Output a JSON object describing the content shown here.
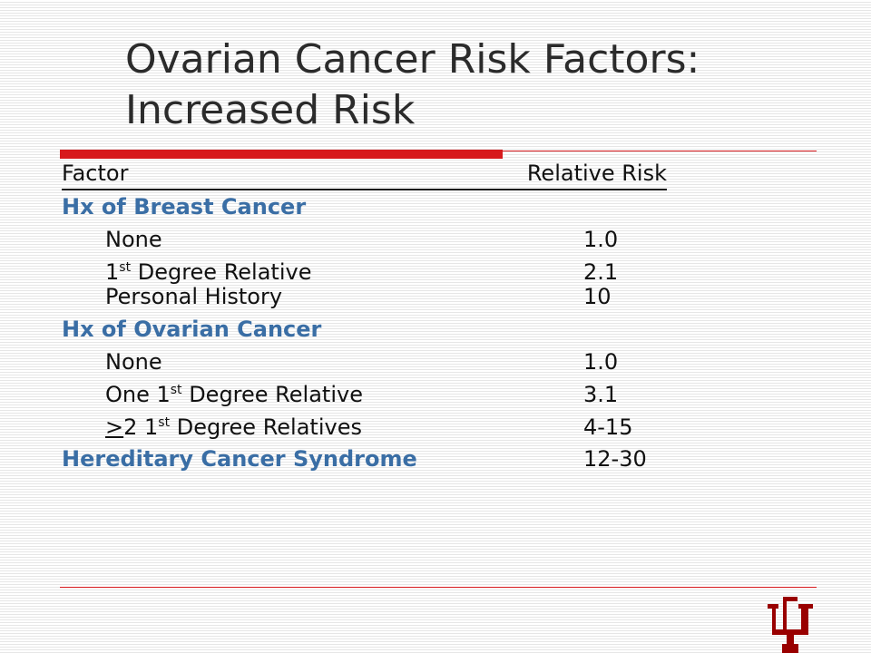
{
  "slide": {
    "title_line1": "Ovarian Cancer Risk Factors:",
    "title_line2": "Increased Risk"
  },
  "table": {
    "header": {
      "factor": "Factor",
      "relative_risk": "Relative Risk"
    },
    "breast": {
      "heading": "Hx of Breast Cancer",
      "none_label": "None",
      "none_value": "1.0",
      "first_degree_num": "1",
      "first_degree_sup": "st",
      "first_degree_rest": " Degree Relative",
      "first_degree_value": "2.1",
      "personal_label": "Personal History",
      "personal_value": "10"
    },
    "ovarian": {
      "heading": "Hx of Ovarian Cancer",
      "none_label": "None",
      "none_value": "1.0",
      "one_prefix": "One 1",
      "one_sup": "st",
      "one_rest": " Degree Relative",
      "one_value": "3.1",
      "two_ge": ">",
      "two_mid": "2 1",
      "two_sup": "st",
      "two_rest": " Degree Relatives",
      "two_value": "4-15"
    },
    "hereditary": {
      "label": "Hereditary Cancer Syndrome",
      "value": "12-30"
    }
  },
  "logo": {
    "name": "IU trident logo",
    "color": "#990000"
  },
  "colors": {
    "accent_red": "#d7191c",
    "category_blue": "#3a6ea5"
  }
}
